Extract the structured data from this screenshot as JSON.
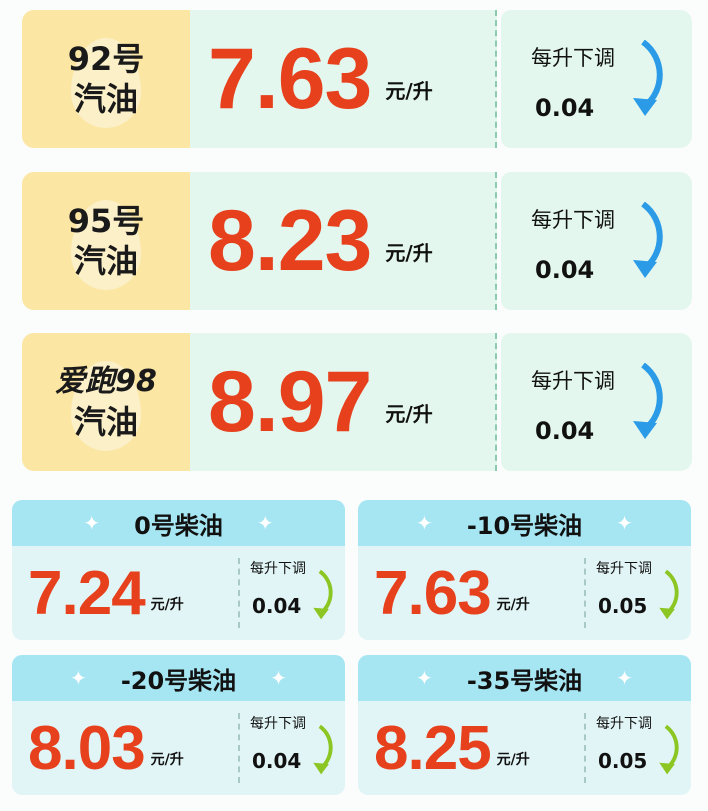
{
  "gasoline": [
    {
      "name_line1": "92号",
      "name_line2": "汽油",
      "price": "7.63",
      "unit": "元/升",
      "adjust_label": "每升下调",
      "adjust_value": "0.04"
    },
    {
      "name_line1": "95号",
      "name_line2": "汽油",
      "price": "8.23",
      "unit": "元/升",
      "adjust_label": "每升下调",
      "adjust_value": "0.04"
    },
    {
      "name_line1": "爱跑98",
      "name_line2": "汽油",
      "price": "8.97",
      "unit": "元/升",
      "adjust_label": "每升下调",
      "adjust_value": "0.04"
    }
  ],
  "diesel": [
    {
      "name": "0号柴油",
      "price": "7.24",
      "unit": "元/升",
      "adjust_label": "每升下调",
      "adjust_value": "0.04"
    },
    {
      "name": "-10号柴油",
      "price": "7.63",
      "unit": "元/升",
      "adjust_label": "每升下调",
      "adjust_value": "0.05"
    },
    {
      "name": "-20号柴油",
      "price": "8.03",
      "unit": "元/升",
      "adjust_label": "每升下调",
      "adjust_value": "0.04"
    },
    {
      "name": "-35号柴油",
      "price": "8.25",
      "unit": "元/升",
      "adjust_label": "每升下调",
      "adjust_value": "0.05"
    }
  ],
  "colors": {
    "price": "#e6401c",
    "gas_arrow": "#2b9be8",
    "diesel_arrow": "#8cc623"
  },
  "icons": {
    "gas_arrow": "curved-down-arrow-icon",
    "diesel_arrow": "curved-down-arrow-icon",
    "header_decoration": "sparkle-icon"
  }
}
